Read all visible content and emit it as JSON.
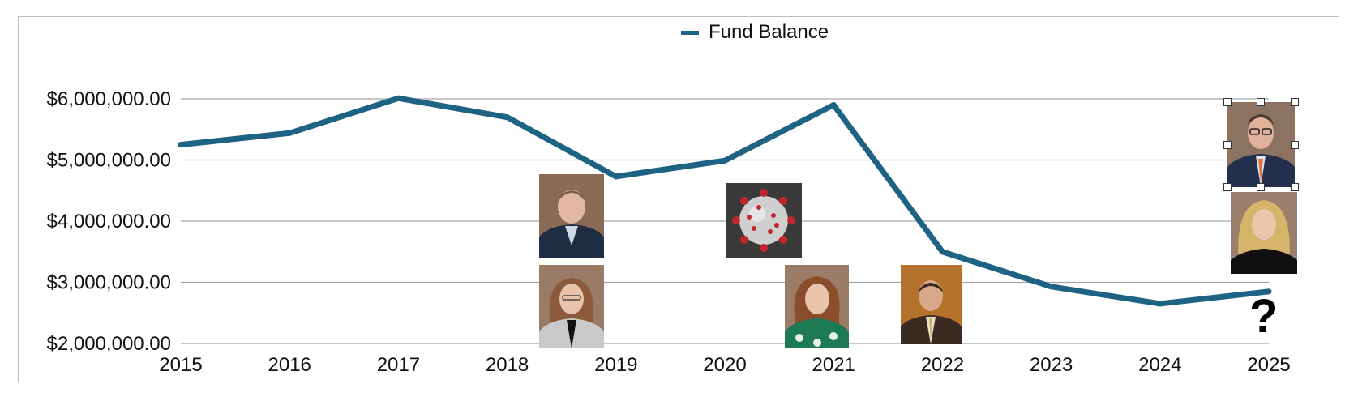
{
  "chart_data": {
    "type": "line",
    "title": "",
    "xlabel": "",
    "ylabel": "",
    "x": [
      "2015",
      "2016",
      "2017",
      "2018",
      "2019",
      "2020",
      "2021",
      "2022",
      "2023",
      "2024",
      "2025"
    ],
    "series": [
      {
        "name": "Fund Balance",
        "color": "#1e6383",
        "values": [
          5250000,
          5440000,
          6010000,
          5700000,
          4730000,
          4990000,
          5900000,
          3500000,
          2930000,
          2650000,
          2850000
        ]
      }
    ],
    "ylim": [
      2000000,
      6000000
    ],
    "yticks": [
      "$6,000,000.00",
      "$5,000,000.00",
      "$4,000,000.00",
      "$3,000,000.00",
      "$2,000,000.00"
    ],
    "grid": true,
    "legend": "top-center"
  },
  "annotations": {
    "question_mark": "?",
    "images": [
      {
        "name": "portrait-man-2019",
        "icon": "person-photo"
      },
      {
        "name": "portrait-woman-2019",
        "icon": "person-photo"
      },
      {
        "name": "coronavirus-2020",
        "icon": "virus-image"
      },
      {
        "name": "portrait-woman-2021",
        "icon": "person-photo"
      },
      {
        "name": "portrait-man-2022",
        "icon": "person-photo"
      },
      {
        "name": "portrait-man-2025",
        "icon": "person-photo"
      },
      {
        "name": "portrait-woman-2025",
        "icon": "person-photo"
      }
    ]
  }
}
